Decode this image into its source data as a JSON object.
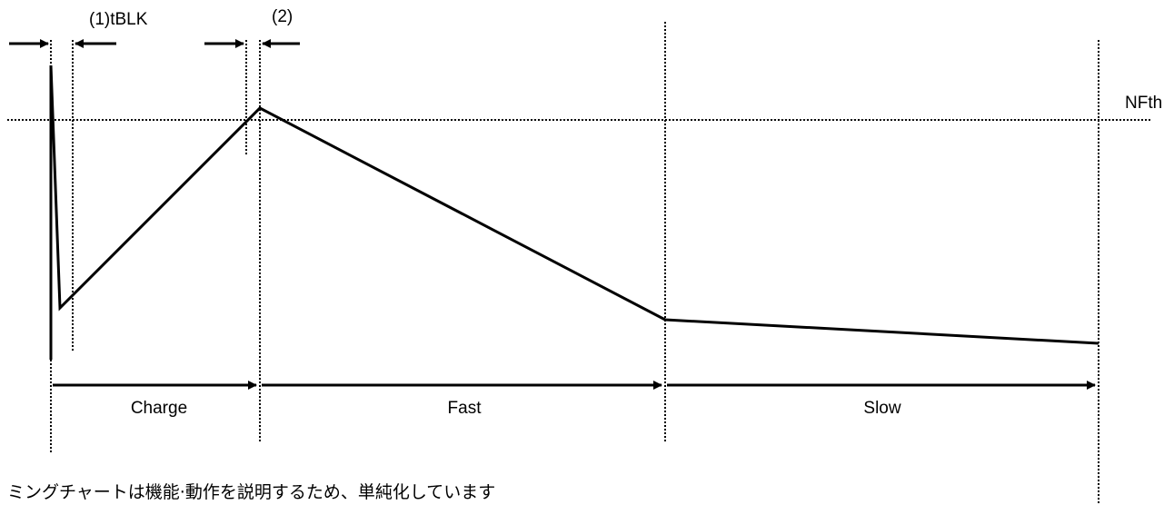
{
  "labels": {
    "blanking": "(1)tBLK",
    "marker2": "(2)",
    "threshold": "NFth",
    "phase_charge": "Charge",
    "phase_fast": "Fast",
    "phase_slow": "Slow"
  },
  "note": "ミングチャートは機能·動作を説明するため、単純化しています"
}
